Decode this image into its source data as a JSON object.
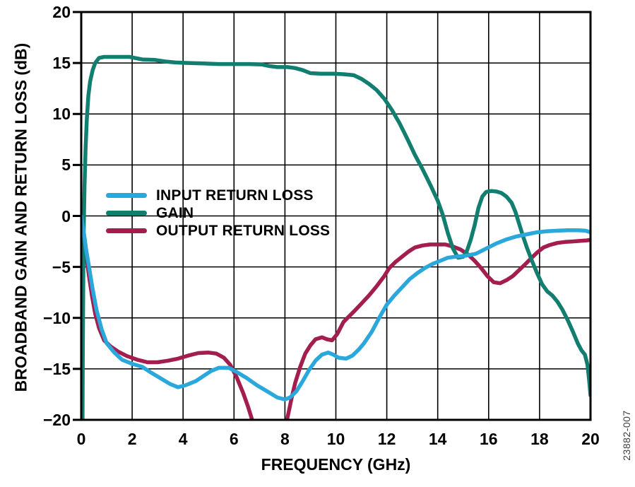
{
  "figure": {
    "y_axis_title": "BROADBAND GAIN AND RETURN LOSS (dB)",
    "x_axis_title": "FREQUENCY (GHz)",
    "side_label": "23882-007",
    "background_color": "#ffffff",
    "frame_color": "#000000"
  },
  "chart_data": {
    "type": "line",
    "title": "",
    "xlabel": "FREQUENCY (GHz)",
    "ylabel": "BROADBAND GAIN AND RETURN LOSS (dB)",
    "xlim": [
      0,
      20
    ],
    "ylim": [
      -20,
      20
    ],
    "x_ticks": [
      0,
      2,
      4,
      6,
      8,
      10,
      12,
      14,
      16,
      18,
      20
    ],
    "y_ticks": [
      20,
      15,
      10,
      5,
      0,
      -5,
      -10,
      -15,
      -20
    ],
    "y_tick_labels": [
      "20",
      "15",
      "10",
      "5",
      "0",
      "−5",
      "−10",
      "−15",
      "−20"
    ],
    "grid": true,
    "legend_position": "inside-left-middle",
    "series": [
      {
        "name": "INPUT RETURN LOSS",
        "color": "#2AA7DB",
        "points": [
          [
            0,
            0
          ],
          [
            0.1,
            -1.6
          ],
          [
            0.2,
            -3.4
          ],
          [
            0.32,
            -5.2
          ],
          [
            0.45,
            -7.2
          ],
          [
            0.6,
            -9.2
          ],
          [
            0.8,
            -11.1
          ],
          [
            1.0,
            -12.5
          ],
          [
            1.3,
            -13.4
          ],
          [
            1.6,
            -14.1
          ],
          [
            2.0,
            -14.5
          ],
          [
            2.4,
            -14.8
          ],
          [
            2.7,
            -15.3
          ],
          [
            3.1,
            -15.9
          ],
          [
            3.5,
            -16.5
          ],
          [
            3.8,
            -16.8
          ],
          [
            4.1,
            -16.6
          ],
          [
            4.5,
            -16.2
          ],
          [
            4.8,
            -15.7
          ],
          [
            5.1,
            -15.2
          ],
          [
            5.4,
            -14.9
          ],
          [
            5.8,
            -14.9
          ],
          [
            6.1,
            -15.3
          ],
          [
            6.5,
            -15.9
          ],
          [
            6.9,
            -16.6
          ],
          [
            7.3,
            -17.2
          ],
          [
            7.7,
            -17.8
          ],
          [
            8.0,
            -18.0
          ],
          [
            8.2,
            -17.8
          ],
          [
            8.45,
            -17.2
          ],
          [
            8.7,
            -16.2
          ],
          [
            8.95,
            -15.1
          ],
          [
            9.2,
            -14.2
          ],
          [
            9.45,
            -13.6
          ],
          [
            9.7,
            -13.4
          ],
          [
            9.9,
            -13.6
          ],
          [
            10.1,
            -13.9
          ],
          [
            10.4,
            -14.0
          ],
          [
            10.65,
            -13.7
          ],
          [
            10.9,
            -13.1
          ],
          [
            11.1,
            -12.5
          ],
          [
            11.4,
            -11.4
          ],
          [
            11.7,
            -10.0
          ],
          [
            12.0,
            -8.7
          ],
          [
            12.3,
            -7.8
          ],
          [
            12.6,
            -7.0
          ],
          [
            12.9,
            -6.2
          ],
          [
            13.2,
            -5.6
          ],
          [
            13.5,
            -5.1
          ],
          [
            13.8,
            -4.7
          ],
          [
            14.1,
            -4.4
          ],
          [
            14.4,
            -4.1
          ],
          [
            14.7,
            -4.0
          ],
          [
            15.1,
            -3.9
          ],
          [
            15.5,
            -3.7
          ],
          [
            15.9,
            -3.2
          ],
          [
            16.3,
            -2.7
          ],
          [
            16.7,
            -2.3
          ],
          [
            17.1,
            -2.0
          ],
          [
            17.5,
            -1.8
          ],
          [
            17.9,
            -1.6
          ],
          [
            18.3,
            -1.5
          ],
          [
            18.7,
            -1.45
          ],
          [
            19.1,
            -1.4
          ],
          [
            19.5,
            -1.4
          ],
          [
            19.8,
            -1.45
          ],
          [
            20,
            -1.6
          ]
        ]
      },
      {
        "name": "GAIN",
        "color": "#117E70",
        "points": [
          [
            0.05,
            -21
          ],
          [
            0.06,
            -14
          ],
          [
            0.08,
            -6
          ],
          [
            0.1,
            -1
          ],
          [
            0.13,
            3
          ],
          [
            0.17,
            6.5
          ],
          [
            0.22,
            9.5
          ],
          [
            0.28,
            11.8
          ],
          [
            0.35,
            13.2
          ],
          [
            0.45,
            14.3
          ],
          [
            0.55,
            15.0
          ],
          [
            0.7,
            15.5
          ],
          [
            0.9,
            15.6
          ],
          [
            1.4,
            15.6
          ],
          [
            1.9,
            15.6
          ],
          [
            2.1,
            15.5
          ],
          [
            2.4,
            15.35
          ],
          [
            2.9,
            15.3
          ],
          [
            3.3,
            15.15
          ],
          [
            3.7,
            15.05
          ],
          [
            4.2,
            15.0
          ],
          [
            4.8,
            14.95
          ],
          [
            5.4,
            14.9
          ],
          [
            6.0,
            14.9
          ],
          [
            6.6,
            14.9
          ],
          [
            7.1,
            14.85
          ],
          [
            7.4,
            14.7
          ],
          [
            7.7,
            14.6
          ],
          [
            8.1,
            14.6
          ],
          [
            8.4,
            14.5
          ],
          [
            8.7,
            14.3
          ],
          [
            9.0,
            14.0
          ],
          [
            9.4,
            13.95
          ],
          [
            9.9,
            13.95
          ],
          [
            10.3,
            13.9
          ],
          [
            10.7,
            13.8
          ],
          [
            11.0,
            13.45
          ],
          [
            11.3,
            12.95
          ],
          [
            11.6,
            12.35
          ],
          [
            11.9,
            11.5
          ],
          [
            12.2,
            10.4
          ],
          [
            12.5,
            9.1
          ],
          [
            12.8,
            7.6
          ],
          [
            13.1,
            6.0
          ],
          [
            13.4,
            4.6
          ],
          [
            13.7,
            3.1
          ],
          [
            14.0,
            1.5
          ],
          [
            14.2,
            0.1
          ],
          [
            14.4,
            -1.7
          ],
          [
            14.6,
            -3.2
          ],
          [
            14.8,
            -4.1
          ],
          [
            15.0,
            -4.0
          ],
          [
            15.15,
            -3.4
          ],
          [
            15.3,
            -2.3
          ],
          [
            15.45,
            -0.9
          ],
          [
            15.6,
            0.8
          ],
          [
            15.75,
            1.9
          ],
          [
            15.9,
            2.35
          ],
          [
            16.1,
            2.45
          ],
          [
            16.3,
            2.4
          ],
          [
            16.5,
            2.25
          ],
          [
            16.7,
            1.9
          ],
          [
            16.9,
            1.3
          ],
          [
            17.05,
            0.4
          ],
          [
            17.2,
            -0.8
          ],
          [
            17.35,
            -2.0
          ],
          [
            17.5,
            -3.1
          ],
          [
            17.7,
            -4.4
          ],
          [
            17.9,
            -5.6
          ],
          [
            18.1,
            -6.7
          ],
          [
            18.3,
            -7.4
          ],
          [
            18.5,
            -7.8
          ],
          [
            18.7,
            -8.4
          ],
          [
            18.9,
            -9.2
          ],
          [
            19.1,
            -10.2
          ],
          [
            19.3,
            -11.3
          ],
          [
            19.5,
            -12.5
          ],
          [
            19.65,
            -13.2
          ],
          [
            19.78,
            -13.6
          ],
          [
            19.88,
            -14.6
          ],
          [
            19.95,
            -16.2
          ],
          [
            20,
            -17.6
          ]
        ]
      },
      {
        "name": "OUTPUT RETURN LOSS",
        "color": "#A41D4F",
        "points": [
          [
            0,
            0
          ],
          [
            0.1,
            -2.0
          ],
          [
            0.2,
            -4.0
          ],
          [
            0.3,
            -5.8
          ],
          [
            0.42,
            -7.8
          ],
          [
            0.55,
            -9.6
          ],
          [
            0.7,
            -11.0
          ],
          [
            0.9,
            -12.2
          ],
          [
            1.15,
            -12.8
          ],
          [
            1.45,
            -13.3
          ],
          [
            1.8,
            -13.75
          ],
          [
            2.2,
            -14.1
          ],
          [
            2.6,
            -14.35
          ],
          [
            3.0,
            -14.35
          ],
          [
            3.4,
            -14.2
          ],
          [
            3.8,
            -14.0
          ],
          [
            4.2,
            -13.7
          ],
          [
            4.6,
            -13.45
          ],
          [
            5.0,
            -13.4
          ],
          [
            5.3,
            -13.5
          ],
          [
            5.6,
            -13.9
          ],
          [
            5.85,
            -14.6
          ],
          [
            6.1,
            -15.8
          ],
          [
            6.35,
            -17.3
          ],
          [
            6.55,
            -18.7
          ],
          [
            6.75,
            -20.3
          ],
          [
            7.0,
            -21.8
          ],
          [
            7.5,
            -22.5
          ],
          [
            7.95,
            -21.3
          ],
          [
            8.1,
            -19.8
          ],
          [
            8.25,
            -18.0
          ],
          [
            8.4,
            -16.4
          ],
          [
            8.6,
            -14.8
          ],
          [
            8.8,
            -13.5
          ],
          [
            9.0,
            -12.7
          ],
          [
            9.2,
            -12.1
          ],
          [
            9.45,
            -11.9
          ],
          [
            9.65,
            -12.1
          ],
          [
            9.85,
            -12.2
          ],
          [
            10.05,
            -11.6
          ],
          [
            10.3,
            -10.4
          ],
          [
            10.7,
            -9.4
          ],
          [
            11.0,
            -8.6
          ],
          [
            11.3,
            -7.8
          ],
          [
            11.6,
            -6.9
          ],
          [
            11.9,
            -5.9
          ],
          [
            12.1,
            -5.1
          ],
          [
            12.35,
            -4.5
          ],
          [
            12.6,
            -4.0
          ],
          [
            12.85,
            -3.5
          ],
          [
            13.1,
            -3.1
          ],
          [
            13.4,
            -2.9
          ],
          [
            13.7,
            -2.8
          ],
          [
            14.0,
            -2.8
          ],
          [
            14.3,
            -2.8
          ],
          [
            14.6,
            -3.0
          ],
          [
            14.9,
            -3.3
          ],
          [
            15.2,
            -3.8
          ],
          [
            15.45,
            -4.4
          ],
          [
            15.7,
            -5.1
          ],
          [
            15.95,
            -5.9
          ],
          [
            16.2,
            -6.5
          ],
          [
            16.45,
            -6.6
          ],
          [
            16.7,
            -6.3
          ],
          [
            16.95,
            -5.9
          ],
          [
            17.2,
            -5.3
          ],
          [
            17.45,
            -4.7
          ],
          [
            17.65,
            -4.2
          ],
          [
            17.9,
            -3.6
          ],
          [
            18.15,
            -3.1
          ],
          [
            18.4,
            -2.85
          ],
          [
            18.7,
            -2.65
          ],
          [
            19.0,
            -2.55
          ],
          [
            19.3,
            -2.5
          ],
          [
            19.6,
            -2.45
          ],
          [
            19.85,
            -2.4
          ],
          [
            20,
            -2.35
          ]
        ]
      }
    ]
  }
}
